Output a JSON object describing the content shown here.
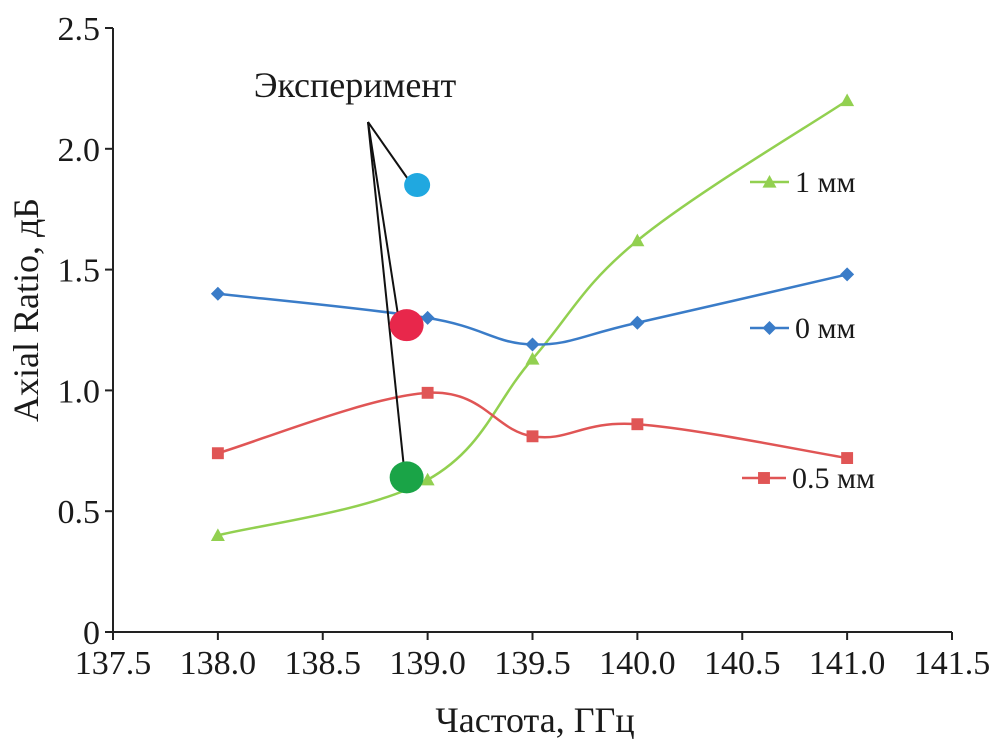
{
  "chart_data": {
    "type": "line",
    "title": "",
    "xlabel": "Частота, ГГц",
    "ylabel": "Axial Ratio, дБ",
    "xlim": [
      137.5,
      141.5
    ],
    "ylim": [
      0,
      2.5
    ],
    "x_ticks": [
      "137.5",
      "138.0",
      "138.5",
      "139.0",
      "139.5",
      "140.0",
      "140.5",
      "141.0",
      "141.5"
    ],
    "y_ticks": [
      "0",
      "0.5",
      "1.0",
      "1.5",
      "2.0",
      "2.5"
    ],
    "x": [
      138.0,
      139.0,
      139.5,
      140.0,
      141.0
    ],
    "grid": false,
    "legend_placement": "right, next to each series end",
    "series": [
      {
        "name": "1 мм",
        "marker": "triangle",
        "color": "#92d050",
        "values": [
          0.4,
          0.63,
          1.13,
          1.62,
          2.2
        ]
      },
      {
        "name": "0 мм",
        "marker": "diamond",
        "color": "#3a7cc8",
        "values": [
          1.4,
          1.3,
          1.19,
          1.28,
          1.48
        ]
      },
      {
        "name": "0.5 мм",
        "marker": "square",
        "color": "#e05555",
        "values": [
          0.74,
          0.99,
          0.81,
          0.86,
          0.72
        ]
      }
    ],
    "annotation": {
      "text": "Эксперимент",
      "points": [
        {
          "x": 138.95,
          "y": 1.85,
          "color": "#20a8e0"
        },
        {
          "x": 138.9,
          "y": 1.27,
          "color": "#e8274b"
        },
        {
          "x": 138.9,
          "y": 0.64,
          "color": "#1aa447"
        }
      ]
    }
  }
}
